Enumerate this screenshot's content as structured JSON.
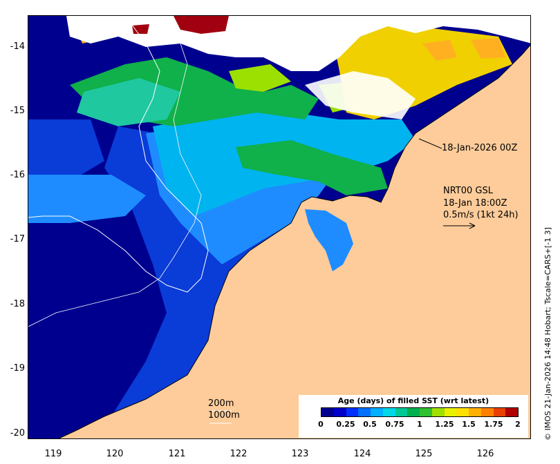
{
  "map": {
    "y_ticks": [
      "-14",
      "-15",
      "-16",
      "-17",
      "-18",
      "-19",
      "-20"
    ],
    "x_ticks": [
      "119",
      "120",
      "121",
      "122",
      "123",
      "124",
      "125",
      "126"
    ],
    "swath_time": "18-Jan-2026 00Z",
    "current_source": "NRT00 GSL",
    "current_time": "18-Jan 18:00Z",
    "current_scale": "0.5m/s (1kt 24h)",
    "contour_200": "200m",
    "contour_1000": "1000m",
    "colorbar": {
      "title": "Age (days) of filled SST (wrt latest)",
      "ticks": [
        "0",
        "0.25",
        "0.5",
        "0.75",
        "1",
        "1.25",
        "1.5",
        "1.75",
        "2"
      ],
      "colors": [
        "#00008f",
        "#0000c8",
        "#0030ff",
        "#0070ff",
        "#00b0ff",
        "#00d8e8",
        "#00c896",
        "#00b050",
        "#30c030",
        "#a0e000",
        "#e8f000",
        "#ffe000",
        "#ffb000",
        "#ff8000",
        "#e84000",
        "#b00000"
      ]
    },
    "credit": "© IMOS 21-Jan-2026 14:48 Hobart; Tscale=CARS+[-1 3]",
    "colors": {
      "land": "#fdcc9a",
      "no_data": "#ffffff",
      "deep_blue": "#00008f",
      "mid_blue": "#0a3cd8",
      "light_blue": "#1e8cff",
      "cyan": "#00b4f0",
      "green": "#10b04a",
      "teal": "#20c8a0",
      "lime": "#9be000",
      "yellow": "#f0d000",
      "orange": "#ffb020",
      "dark_red": "#a00010"
    }
  }
}
